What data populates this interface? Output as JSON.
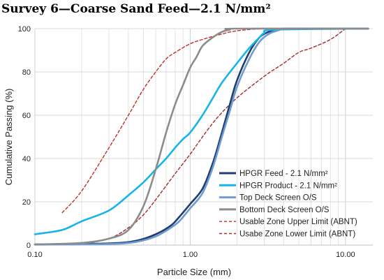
{
  "chart_data": {
    "type": "line",
    "title": "Survey 6—Coarse Sand Feed—2.1 N/mm²",
    "xlabel": "Particle Size (mm)",
    "ylabel": "Cumulative Passing (%)",
    "x_scale": "log",
    "xlim": [
      0.1,
      15
    ],
    "ylim": [
      0,
      100
    ],
    "x_ticks": [
      0.1,
      1,
      10
    ],
    "x_tick_labels": [
      "0.10",
      "1.00",
      "10.00"
    ],
    "y_ticks": [
      0,
      20,
      40,
      60,
      80,
      100
    ],
    "y_tick_labels": [
      "0",
      "20",
      "40",
      "60",
      "80",
      "100"
    ],
    "grid": true,
    "legend_position": "bottom-right",
    "series": [
      {
        "name": "HPGR Feed - 2.1 N/mm²",
        "color": "#1f3e6e",
        "dash": "solid",
        "x": [
          0.1,
          0.3,
          0.45,
          0.6,
          0.75,
          0.85,
          1.0,
          1.2,
          1.4,
          1.6,
          1.8,
          2.0,
          2.4,
          2.8,
          3.2,
          3.6,
          4.0,
          5.0,
          14.0
        ],
        "y": [
          0.3,
          0.8,
          2,
          5,
          9,
          13,
          19,
          26,
          38,
          52,
          65,
          76,
          89,
          96,
          98.5,
          99.5,
          100,
          100,
          100
        ]
      },
      {
        "name": "HPGR Product - 2.1 N/mm²",
        "color": "#17b4e8",
        "dash": "solid",
        "x": [
          0.1,
          0.15,
          0.2,
          0.3,
          0.4,
          0.5,
          0.6,
          0.7,
          0.8,
          0.9,
          1.0,
          1.2,
          1.4,
          1.6,
          2.0,
          2.4,
          2.8,
          3.0,
          3.5,
          14.0
        ],
        "y": [
          5,
          7,
          11,
          16,
          23,
          29,
          35,
          40,
          45,
          49,
          52,
          60,
          68,
          75,
          84,
          91,
          96,
          98,
          99.5,
          100
        ]
      },
      {
        "name": "Top Deck Screen O/S",
        "color": "#6f9bd0",
        "dash": "solid",
        "x": [
          0.1,
          0.3,
          0.45,
          0.6,
          0.75,
          0.85,
          1.0,
          1.2,
          1.4,
          1.6,
          1.8,
          2.0,
          2.4,
          2.8,
          3.2,
          3.6,
          4.0,
          5.0,
          14.0
        ],
        "y": [
          0.2,
          0.5,
          1.5,
          4,
          8,
          11,
          17,
          24,
          36,
          50,
          62,
          73,
          86,
          94,
          97.5,
          99,
          99.8,
          100,
          100
        ]
      },
      {
        "name": "Bottom Deck Screen O/S",
        "color": "#8c8c8c",
        "dash": "solid",
        "x": [
          0.1,
          0.2,
          0.3,
          0.4,
          0.5,
          0.6,
          0.7,
          0.8,
          0.9,
          1.0,
          1.1,
          1.2,
          1.4,
          1.6,
          1.8,
          2.0,
          14.0
        ],
        "y": [
          0.3,
          1,
          3,
          7,
          18,
          35,
          52,
          65,
          74,
          82,
          87,
          92,
          96,
          98.5,
          99.5,
          100,
          100
        ]
      },
      {
        "name": "Usable Zone Upper Limit (ABNT)",
        "color": "#c0302a",
        "dash": "dashed",
        "x": [
          0.15,
          0.2,
          0.3,
          0.4,
          0.5,
          0.6,
          0.7,
          0.8,
          1.0,
          1.2,
          1.5,
          2.0,
          3.0,
          4.0,
          6.0
        ],
        "y": [
          15,
          25,
          45,
          60,
          72,
          80,
          86,
          89,
          93,
          95,
          97,
          99,
          100,
          100,
          100
        ]
      },
      {
        "name": "Usabe Zone Lower Limit (ABNT)",
        "color": "#a52a2a",
        "dash": "dashed",
        "x": [
          0.15,
          0.2,
          0.3,
          0.4,
          0.5,
          0.6,
          0.8,
          1.0,
          1.2,
          1.5,
          2.0,
          3.0,
          4.0,
          5.0,
          6.0,
          8.0,
          10.0
        ],
        "y": [
          0.3,
          0.5,
          3,
          8,
          14,
          21,
          33,
          42,
          50,
          59,
          68,
          78,
          84,
          89,
          91,
          95,
          100
        ]
      }
    ]
  }
}
